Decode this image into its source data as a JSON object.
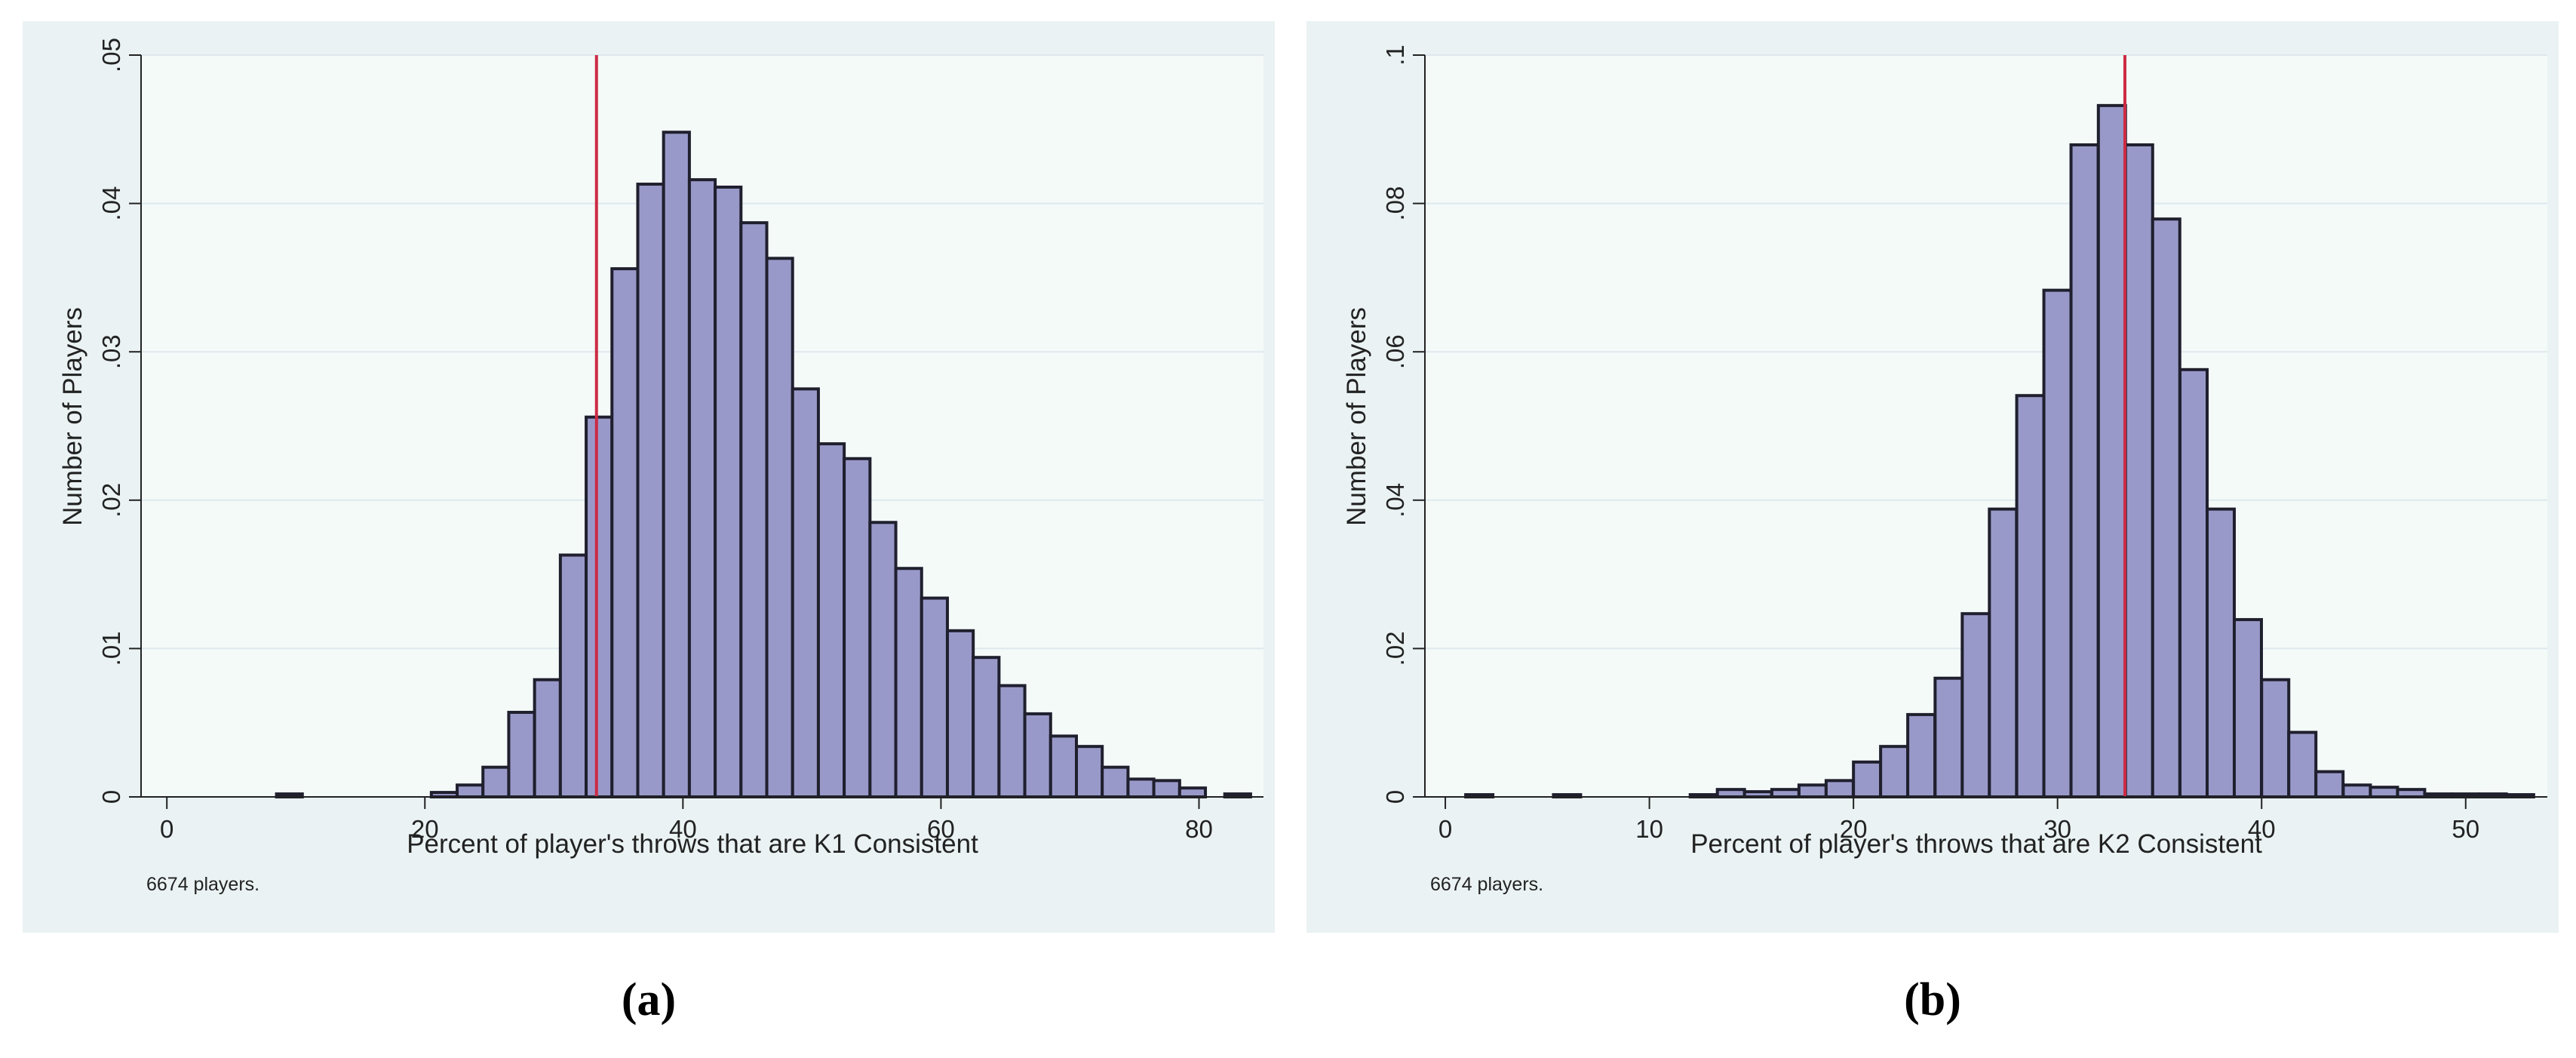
{
  "chart_data": [
    {
      "type": "bar",
      "panel_label": "(a)",
      "title": "",
      "xlabel": "Percent of player's throws that are K1 Consistent",
      "ylabel": "Number of Players",
      "note": "6674 players.",
      "xlim": [
        -2,
        85
      ],
      "ylim": [
        0,
        0.05
      ],
      "xticks": [
        0,
        20,
        40,
        60,
        80
      ],
      "xtick_labels": [
        "0",
        "20",
        "40",
        "60",
        "80"
      ],
      "yticks": [
        0,
        0.01,
        0.02,
        0.03,
        0.04,
        0.05
      ],
      "ytick_labels": [
        "0",
        ".01",
        ".02",
        ".03",
        ".04",
        ".05"
      ],
      "grid": true,
      "bin_width": 2,
      "bin_starts": [
        8.5,
        20.5,
        22.5,
        24.5,
        26.5,
        28.5,
        30.5,
        32.5,
        34.5,
        36.5,
        38.5,
        40.5,
        42.5,
        44.5,
        46.5,
        48.5,
        50.5,
        52.5,
        54.5,
        56.5,
        58.5,
        60.5,
        62.5,
        64.5,
        66.5,
        68.5,
        70.5,
        72.5,
        74.5,
        76.5,
        78.5,
        82.0
      ],
      "values": [
        0.0002,
        0.0003,
        0.0008,
        0.002,
        0.0057,
        0.0079,
        0.0163,
        0.0256,
        0.0356,
        0.0413,
        0.0448,
        0.0416,
        0.0411,
        0.0387,
        0.0363,
        0.0275,
        0.0238,
        0.0228,
        0.0185,
        0.0154,
        0.0134,
        0.0112,
        0.0094,
        0.0075,
        0.0056,
        0.0041,
        0.0034,
        0.002,
        0.0012,
        0.0011,
        0.0006,
        0.0002
      ],
      "reference_line_x": 33.3,
      "bar_color": "#9999c9",
      "edge_color": "#1f1f2e",
      "ref_color": "#cc2b44"
    },
    {
      "type": "bar",
      "panel_label": "(b)",
      "title": "",
      "xlabel": "Percent of player's throws that are K2 Consistent",
      "ylabel": "Number of Players",
      "note": "6674 players.",
      "xlim": [
        -1,
        54
      ],
      "ylim": [
        0,
        0.1
      ],
      "xticks": [
        0,
        10,
        20,
        30,
        40,
        50
      ],
      "xtick_labels": [
        "0",
        "10",
        "20",
        "30",
        "40",
        "50"
      ],
      "yticks": [
        0,
        0.02,
        0.04,
        0.06,
        0.08,
        0.1
      ],
      "ytick_labels": [
        "0",
        ".02",
        ".04",
        ".06",
        ".08",
        ".1"
      ],
      "grid": true,
      "bin_width": 1.33,
      "bin_starts": [
        1.0,
        5.3,
        12.0,
        13.33,
        14.66,
        16.0,
        17.33,
        18.66,
        20.0,
        21.33,
        22.66,
        24.0,
        25.33,
        26.66,
        28.0,
        29.33,
        30.66,
        32.0,
        33.33,
        34.66,
        36.0,
        37.33,
        38.66,
        40.0,
        41.33,
        42.66,
        44.0,
        45.33,
        46.66,
        48.0,
        49.33,
        50.66,
        52.0
      ],
      "values": [
        0.0003,
        0.0003,
        0.0003,
        0.001,
        0.0007,
        0.001,
        0.0016,
        0.0022,
        0.0047,
        0.0068,
        0.0111,
        0.016,
        0.0247,
        0.0388,
        0.0541,
        0.0683,
        0.0879,
        0.0932,
        0.0879,
        0.0779,
        0.0576,
        0.0388,
        0.0239,
        0.0158,
        0.0087,
        0.0034,
        0.0016,
        0.0013,
        0.001,
        0.0004,
        0.0004,
        0.0004,
        0.0003
      ],
      "reference_line_x": 33.3,
      "bar_color": "#9999c9",
      "edge_color": "#1f1f2e",
      "ref_color": "#cc2b44"
    }
  ]
}
